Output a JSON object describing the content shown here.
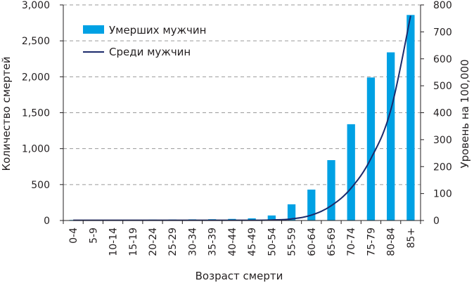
{
  "chart_data": {
    "type": "bar",
    "categories": [
      "0-4",
      "5-9",
      "10-14",
      "15-19",
      "20-24",
      "25-29",
      "30-34",
      "35-39",
      "40-44",
      "45-49",
      "50-54",
      "55-59",
      "60-64",
      "65-69",
      "70-74",
      "75-79",
      "80-84",
      "85+"
    ],
    "series": [
      {
        "name": "Умерших мужчин",
        "type": "bar",
        "axis": "left",
        "color": "#00a1e4",
        "values": [
          8,
          5,
          8,
          10,
          12,
          14,
          16,
          18,
          22,
          30,
          70,
          225,
          430,
          840,
          1340,
          1990,
          2340,
          2860
        ]
      },
      {
        "name": "Среди мужчин",
        "type": "line",
        "axis": "right",
        "color": "#1b2a6b",
        "values": [
          1,
          1,
          1,
          1,
          1,
          1,
          1,
          1,
          1,
          1,
          2,
          6,
          20,
          55,
          120,
          230,
          410,
          760
        ]
      }
    ],
    "xlabel": "Возраст смерти",
    "ylabel": "Количество смертей",
    "y2label": "Уровень на 100,000",
    "ylim": [
      0,
      3000
    ],
    "y2lim": [
      0,
      800
    ],
    "yticks": [
      "0",
      "500",
      "1,000",
      "1,500",
      "2,000",
      "2,500",
      "3,000"
    ],
    "y2ticks": [
      "0",
      "100",
      "200",
      "300",
      "400",
      "500",
      "600",
      "700",
      "800"
    ],
    "grid": true,
    "legend": "top-left"
  }
}
